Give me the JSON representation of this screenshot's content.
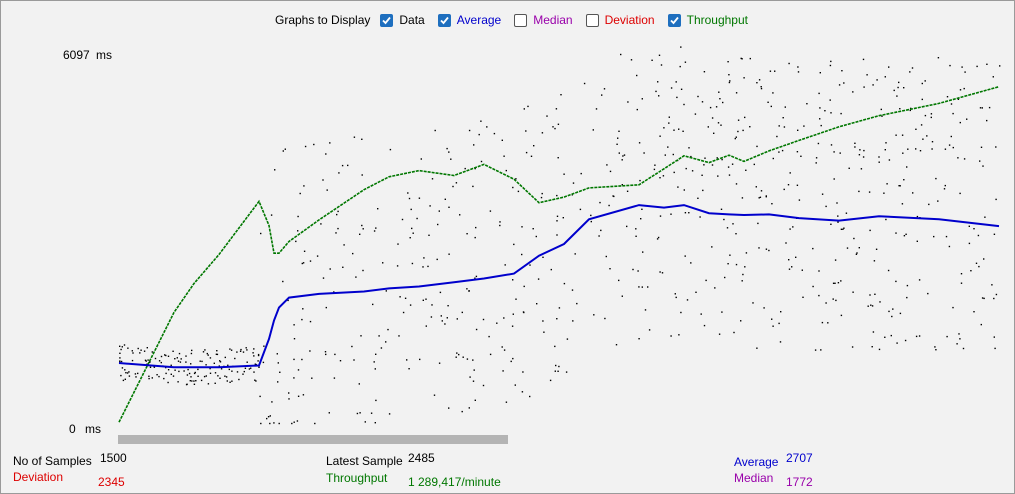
{
  "toolbar": {
    "title": "Graphs to Display",
    "options": [
      {
        "label": "Data",
        "checked": true,
        "color": "#000000"
      },
      {
        "label": "Average",
        "checked": true,
        "color": "#0000cc"
      },
      {
        "label": "Median",
        "checked": false,
        "color": "#9900aa"
      },
      {
        "label": "Deviation",
        "checked": false,
        "color": "#dd0000"
      },
      {
        "label": "Throughput",
        "checked": true,
        "color": "#007700"
      }
    ]
  },
  "axis": {
    "max_value": "6097",
    "max_unit": "ms",
    "min_value": "0",
    "min_unit": "ms"
  },
  "stats": {
    "no_of_samples_label": "No of Samples",
    "no_of_samples_value": "1500",
    "deviation_label": "Deviation",
    "deviation_value": "2345",
    "latest_sample_label": "Latest Sample",
    "latest_sample_value": "2485",
    "throughput_label": "Throughput",
    "throughput_value": "1 289,417/minute",
    "average_label": "Average",
    "average_value": "2707",
    "median_label": "Median",
    "median_value": "1772"
  },
  "colors": {
    "data": "#000000",
    "average": "#0000cc",
    "throughput": "#007700",
    "deviation": "#dd0000",
    "median": "#9900aa"
  },
  "chart_data": {
    "type": "line",
    "y_range_ms": [
      0,
      6097
    ],
    "x": [
      0,
      55,
      75,
      100,
      140,
      150,
      155,
      160,
      170,
      200,
      245,
      270,
      300,
      335,
      365,
      395,
      420,
      445,
      470,
      520,
      545,
      565,
      590,
      610,
      625,
      650,
      680,
      720,
      760,
      820,
      880
    ],
    "series": [
      {
        "name": "Average",
        "values": [
          1070,
          1000,
          1000,
          1000,
          1030,
          1460,
          1760,
          1970,
          2130,
          2190,
          2230,
          2280,
          2310,
          2380,
          2440,
          2520,
          2810,
          3000,
          3400,
          3630,
          3590,
          3630,
          3500,
          3480,
          3470,
          3480,
          3420,
          3380,
          3450,
          3400,
          3290
        ]
      },
      {
        "name": "Throughput",
        "values": [
          110,
          1890,
          2360,
          2830,
          3690,
          3300,
          2850,
          2850,
          3040,
          3390,
          3880,
          4090,
          4190,
          4110,
          4290,
          4050,
          3670,
          3760,
          3910,
          3960,
          4220,
          4430,
          4320,
          4440,
          4340,
          4510,
          4680,
          4900,
          5080,
          5280,
          5550
        ]
      }
    ],
    "data_points_shown": 1500
  }
}
